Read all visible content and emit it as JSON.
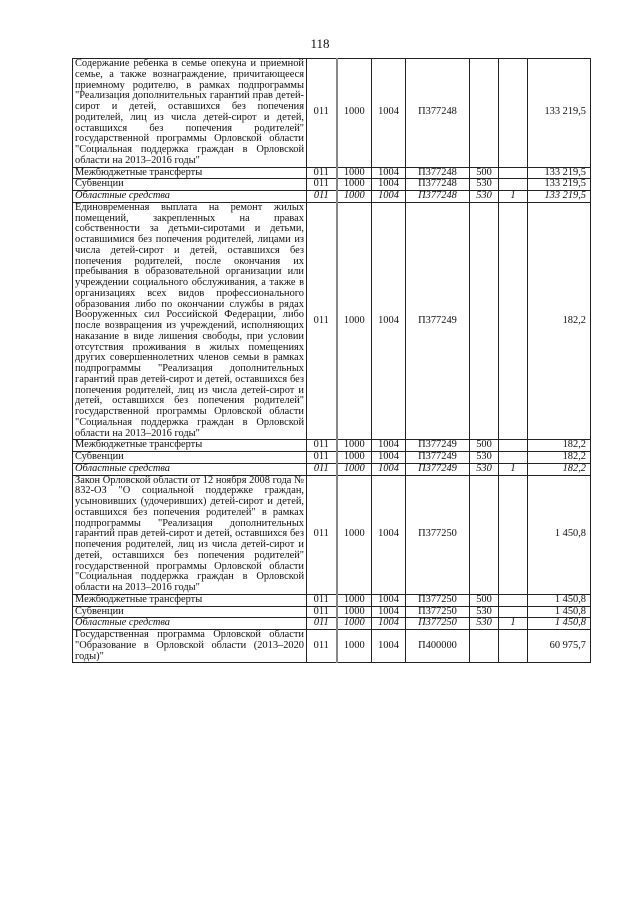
{
  "page_number": "118",
  "rows": [
    {
      "type": "main",
      "text": "Содержание ребенка в семье опекуна и приемной семье, а также вознаграждение, причитающееся приемному родителю, в рамках подпрограммы \"Реализация дополнительных гарантий прав детей-сирот и детей, оставшихся без попечения родителей, лиц из числа детей-сирот и детей, оставшихся без попечения родителей\" государственной программы Орловской области \"Социальная поддержка граждан в Орловской области на 2013–2016 годы\"",
      "c1": "011",
      "c2": "1000",
      "c3": "1004",
      "c4": "П377248",
      "c5": "",
      "c6": "",
      "c7": "133 219,5"
    },
    {
      "type": "sub",
      "text": "Межбюджетные трансферты",
      "c1": "011",
      "c2": "1000",
      "c3": "1004",
      "c4": "П377248",
      "c5": "500",
      "c6": "",
      "c7": "133 219,5"
    },
    {
      "type": "sub",
      "text": "Субвенции",
      "c1": "011",
      "c2": "1000",
      "c3": "1004",
      "c4": "П377248",
      "c5": "530",
      "c6": "",
      "c7": "133 219,5"
    },
    {
      "type": "italic",
      "text": "Областные средства",
      "c1": "011",
      "c2": "1000",
      "c3": "1004",
      "c4": "П377248",
      "c5": "530",
      "c6": "1",
      "c7": "133 219,5"
    },
    {
      "type": "main",
      "text": "Единовременная выплата на ремонт жилых помещений, закрепленных на правах собственности за детьми-сиротами и детьми, оставшимися без попечения родителей, лицами из числа детей-сирот и детей, оставшихся без попечения родителей, после окончания их пребывания в образовательной организации или учреждении социального обслуживания, а также в организациях всех видов профессионального образования либо по окончании службы в рядах Вооруженных сил Российской Федерации, либо после возвращения из учреждений, исполняющих наказание в виде лишения свободы, при условии отсутствия проживания в жилых помещениях других совершеннолетних членов семьи в рамках подпрограммы \"Реализация дополнительных гарантий прав детей-сирот и детей, оставшихся без попечения родителей, лиц из числа детей-сирот и детей, оставшихся без попечения родителей\" государственной программы Орловской области \"Социальная поддержка граждан в Орловской области на 2013–2016 годы\"",
      "c1": "011",
      "c2": "1000",
      "c3": "1004",
      "c4": "П377249",
      "c5": "",
      "c6": "",
      "c7": "182,2"
    },
    {
      "type": "sub",
      "text": "Межбюджетные трансферты",
      "c1": "011",
      "c2": "1000",
      "c3": "1004",
      "c4": "П377249",
      "c5": "500",
      "c6": "",
      "c7": "182,2"
    },
    {
      "type": "sub",
      "text": "Субвенции",
      "c1": "011",
      "c2": "1000",
      "c3": "1004",
      "c4": "П377249",
      "c5": "530",
      "c6": "",
      "c7": "182,2"
    },
    {
      "type": "italic",
      "text": "Областные средства",
      "c1": "011",
      "c2": "1000",
      "c3": "1004",
      "c4": "П377249",
      "c5": "530",
      "c6": "1",
      "c7": "182,2"
    },
    {
      "type": "main",
      "text": "Закон Орловской области от 12 ноября 2008 года № 832-ОЗ \"О социальной поддержке граждан, усыновивших (удочеривших) детей-сирот и детей, оставшихся без попечения родителей\" в рамках подпрограммы \"Реализация дополнительных гарантий прав детей-сирот и детей, оставшихся без попечения родителей, лиц из числа детей-сирот и детей, оставшихся без попечения родителей\" государственной программы Орловской области \"Социальная поддержка граждан в Орловской области на 2013–2016 годы\"",
      "c1": "011",
      "c2": "1000",
      "c3": "1004",
      "c4": "П377250",
      "c5": "",
      "c6": "",
      "c7": "1 450,8"
    },
    {
      "type": "sub",
      "text": "Межбюджетные трансферты",
      "c1": "011",
      "c2": "1000",
      "c3": "1004",
      "c4": "П377250",
      "c5": "500",
      "c6": "",
      "c7": "1 450,8"
    },
    {
      "type": "sub",
      "text": "Субвенции",
      "c1": "011",
      "c2": "1000",
      "c3": "1004",
      "c4": "П377250",
      "c5": "530",
      "c6": "",
      "c7": "1 450,8"
    },
    {
      "type": "italic",
      "text": "Областные средства",
      "c1": "011",
      "c2": "1000",
      "c3": "1004",
      "c4": "П377250",
      "c5": "530",
      "c6": "1",
      "c7": "1 450,8"
    },
    {
      "type": "main",
      "text": "Государственная программа Орловской области \"Образование в Орловской области (2013–2020 годы)\"",
      "c1": "011",
      "c2": "1000",
      "c3": "1004",
      "c4": "П400000",
      "c5": "",
      "c6": "",
      "c7": "60 975,7"
    }
  ]
}
